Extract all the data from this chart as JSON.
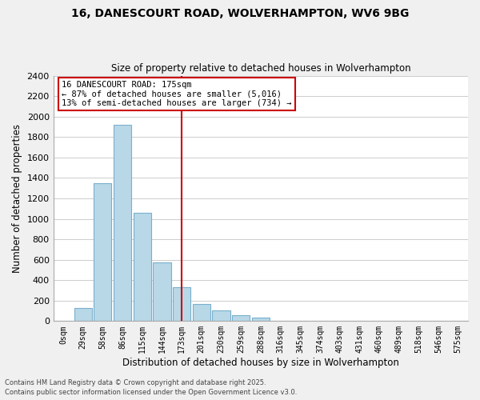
{
  "title": "16, DANESCOURT ROAD, WOLVERHAMPTON, WV6 9BG",
  "subtitle": "Size of property relative to detached houses in Wolverhampton",
  "xlabel": "Distribution of detached houses by size in Wolverhampton",
  "ylabel": "Number of detached properties",
  "bar_labels": [
    "0sqm",
    "29sqm",
    "58sqm",
    "86sqm",
    "115sqm",
    "144sqm",
    "173sqm",
    "201sqm",
    "230sqm",
    "259sqm",
    "288sqm",
    "316sqm",
    "345sqm",
    "374sqm",
    "403sqm",
    "431sqm",
    "460sqm",
    "489sqm",
    "518sqm",
    "546sqm",
    "575sqm"
  ],
  "bar_values": [
    0,
    125,
    1350,
    1920,
    1060,
    570,
    335,
    165,
    105,
    60,
    30,
    0,
    0,
    0,
    0,
    0,
    0,
    0,
    0,
    0,
    0
  ],
  "bar_color": "#b8d8e8",
  "bar_edge_color": "#7ab0cc",
  "vline_x": 6,
  "vline_color": "#cc0000",
  "annotation_title": "16 DANESCOURT ROAD: 175sqm",
  "annotation_line1": "← 87% of detached houses are smaller (5,016)",
  "annotation_line2": "13% of semi-detached houses are larger (734) →",
  "annotation_box_color": "#ffffff",
  "annotation_box_edgecolor": "#cc0000",
  "ylim": [
    0,
    2400
  ],
  "yticks": [
    0,
    200,
    400,
    600,
    800,
    1000,
    1200,
    1400,
    1600,
    1800,
    2000,
    2200,
    2400
  ],
  "footnote1": "Contains HM Land Registry data © Crown copyright and database right 2025.",
  "footnote2": "Contains public sector information licensed under the Open Government Licence v3.0.",
  "bg_color": "#f0f0f0",
  "plot_bg_color": "#ffffff",
  "grid_color": "#cccccc"
}
